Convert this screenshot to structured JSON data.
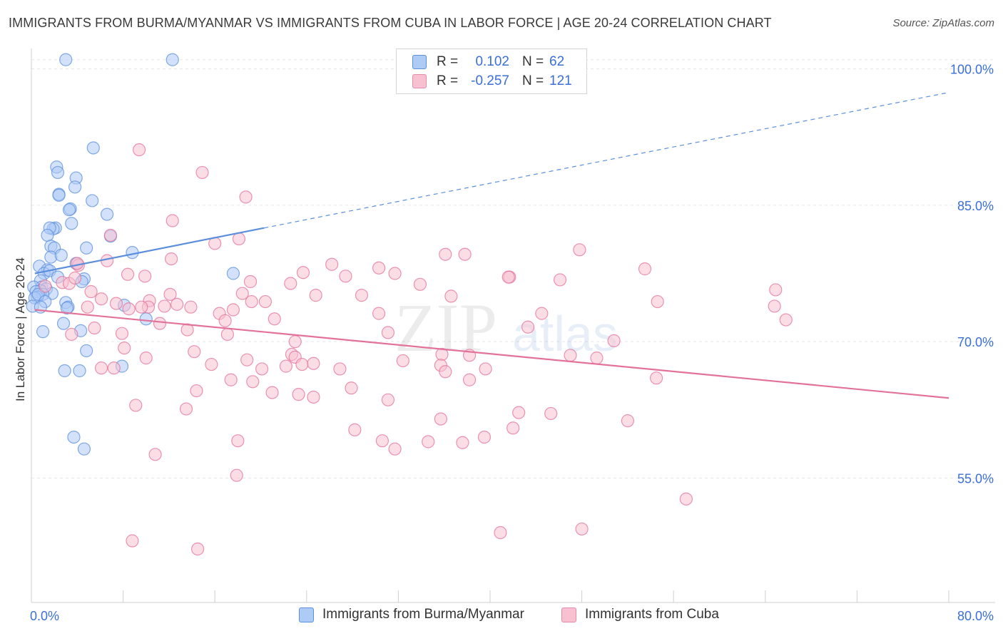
{
  "title": "IMMIGRANTS FROM BURMA/MYANMAR VS IMMIGRANTS FROM CUBA IN LABOR FORCE | AGE 20-24 CORRELATION CHART",
  "source": "Source: ZipAtlas.com",
  "watermark": {
    "zip": "ZIP",
    "atlas": "atlas"
  },
  "legend": {
    "r_label": "R =",
    "n_label": "N =",
    "series": [
      {
        "name": "Immigrants from Burma/Myanmar",
        "r": "0.102",
        "n": "62",
        "fill": "#aecbf5",
        "stroke": "#5b8fdc"
      },
      {
        "name": "Immigrants from Cuba",
        "r": "-0.257",
        "n": "121",
        "fill": "#f7c1d2",
        "stroke": "#e58aa8"
      }
    ]
  },
  "chart_data": {
    "type": "scatter",
    "title": "IMMIGRANTS FROM BURMA/MYANMAR VS IMMIGRANTS FROM CUBA IN LABOR FORCE | AGE 20-24 CORRELATION CHART",
    "xlabel": "",
    "ylabel": "In Labor Force | Age 20-24",
    "xlim": [
      0,
      80
    ],
    "ylim": [
      40,
      102
    ],
    "x_tick_labels": [
      {
        "value": 0,
        "label": "0.0%"
      },
      {
        "value": 80,
        "label": "80.0%"
      }
    ],
    "y_tick_labels": [
      {
        "value": 100,
        "label": "100.0%"
      },
      {
        "value": 85,
        "label": "85.0%"
      },
      {
        "value": 70,
        "label": "70.0%"
      },
      {
        "value": 55,
        "label": "55.0%"
      }
    ],
    "x_minor_ticks": [
      0,
      8,
      16,
      24,
      32,
      40,
      48,
      56,
      64,
      72,
      80
    ],
    "grid": true,
    "series": [
      {
        "name": "Immigrants from Burma/Myanmar",
        "color": "#5b8fdc",
        "fill": "#aecbf5",
        "trend": {
          "x": [
            0.3,
            20.3
          ],
          "y": [
            77.5,
            82.5
          ],
          "dashed_to": [
            80,
            97.4
          ]
        },
        "points": [
          [
            3.0,
            101.0
          ],
          [
            12.3,
            101.0
          ],
          [
            5.4,
            91.3
          ],
          [
            2.2,
            89.2
          ],
          [
            2.3,
            88.6
          ],
          [
            3.9,
            88.0
          ],
          [
            3.8,
            87.0
          ],
          [
            2.4,
            86.2
          ],
          [
            2.4,
            86.1
          ],
          [
            5.3,
            85.5
          ],
          [
            3.4,
            84.6
          ],
          [
            3.3,
            84.5
          ],
          [
            6.6,
            84.0
          ],
          [
            2.1,
            82.5
          ],
          [
            3.5,
            83.0
          ],
          [
            1.9,
            82.4
          ],
          [
            1.6,
            82.5
          ],
          [
            1.4,
            81.7
          ],
          [
            6.9,
            81.6
          ],
          [
            1.7,
            80.5
          ],
          [
            2.0,
            80.3
          ],
          [
            4.8,
            80.3
          ],
          [
            8.8,
            79.8
          ],
          [
            1.7,
            79.3
          ],
          [
            2.6,
            79.5
          ],
          [
            3.9,
            78.6
          ],
          [
            0.7,
            78.3
          ],
          [
            1.4,
            77.9
          ],
          [
            1.1,
            77.5
          ],
          [
            1.6,
            77.8
          ],
          [
            17.6,
            77.5
          ],
          [
            2.3,
            77.1
          ],
          [
            4.6,
            76.9
          ],
          [
            0.8,
            76.7
          ],
          [
            4.4,
            76.6
          ],
          [
            0.9,
            76.0
          ],
          [
            0.2,
            76.0
          ],
          [
            1.3,
            75.8
          ],
          [
            0.8,
            75.6
          ],
          [
            0.4,
            75.5
          ],
          [
            1.8,
            75.3
          ],
          [
            1.0,
            75.2
          ],
          [
            0.5,
            74.9
          ],
          [
            0.3,
            74.8
          ],
          [
            0.6,
            75.2
          ],
          [
            1.2,
            74.4
          ],
          [
            3.0,
            74.3
          ],
          [
            0.1,
            73.9
          ],
          [
            0.8,
            73.8
          ],
          [
            3.2,
            73.8
          ],
          [
            8.1,
            74.0
          ],
          [
            3.1,
            73.7
          ],
          [
            10.0,
            72.5
          ],
          [
            2.8,
            72.0
          ],
          [
            4.3,
            71.2
          ],
          [
            1.0,
            71.1
          ],
          [
            4.8,
            69.0
          ],
          [
            7.9,
            67.3
          ],
          [
            2.9,
            66.8
          ],
          [
            4.2,
            66.8
          ],
          [
            3.7,
            59.5
          ],
          [
            4.6,
            58.2
          ]
        ]
      },
      {
        "name": "Immigrants from Cuba",
        "color": "#e3729a",
        "fill": "#f7c1d2",
        "trend": {
          "x": [
            0.3,
            80
          ],
          "y": [
            73.5,
            63.8
          ]
        },
        "points": [
          [
            9.4,
            91.1
          ],
          [
            14.9,
            88.6
          ],
          [
            18.7,
            85.9
          ],
          [
            12.3,
            83.3
          ],
          [
            6.9,
            81.7
          ],
          [
            18.1,
            81.3
          ],
          [
            16.0,
            80.8
          ],
          [
            47.8,
            80.1
          ],
          [
            36.1,
            79.6
          ],
          [
            37.8,
            79.6
          ],
          [
            12.2,
            79.1
          ],
          [
            6.6,
            78.9
          ],
          [
            4.1,
            78.4
          ],
          [
            26.2,
            78.5
          ],
          [
            53.5,
            78.0
          ],
          [
            4.0,
            78.6
          ],
          [
            23.7,
            77.6
          ],
          [
            31.7,
            77.5
          ],
          [
            9.9,
            77.2
          ],
          [
            27.4,
            77.2
          ],
          [
            41.7,
            77.1
          ],
          [
            46.1,
            76.8
          ],
          [
            22.6,
            76.4
          ],
          [
            33.9,
            76.3
          ],
          [
            2.7,
            76.5
          ],
          [
            64.9,
            75.7
          ],
          [
            1.2,
            76.1
          ],
          [
            3.3,
            76.4
          ],
          [
            18.4,
            75.3
          ],
          [
            5.2,
            75.5
          ],
          [
            28.8,
            75.1
          ],
          [
            24.8,
            75.1
          ],
          [
            12.1,
            75.2
          ],
          [
            54.6,
            74.4
          ],
          [
            64.8,
            73.9
          ],
          [
            19.2,
            74.4
          ],
          [
            6.1,
            74.7
          ],
          [
            10.3,
            74.5
          ],
          [
            12.7,
            74.1
          ],
          [
            7.4,
            74.2
          ],
          [
            13.9,
            73.8
          ],
          [
            8.5,
            73.6
          ],
          [
            11.6,
            73.9
          ],
          [
            10.2,
            73.8
          ],
          [
            4.9,
            73.8
          ],
          [
            16.4,
            73.1
          ],
          [
            30.3,
            73.1
          ],
          [
            44.5,
            73.1
          ],
          [
            65.8,
            72.4
          ],
          [
            21.2,
            72.5
          ],
          [
            16.9,
            72.3
          ],
          [
            11.2,
            72.0
          ],
          [
            43.3,
            71.6
          ],
          [
            5.5,
            71.5
          ],
          [
            13.6,
            71.3
          ],
          [
            31.1,
            71.0
          ],
          [
            3.5,
            70.8
          ],
          [
            7.9,
            70.9
          ],
          [
            17.1,
            70.8
          ],
          [
            50.8,
            70.1
          ],
          [
            23.0,
            70.0
          ],
          [
            8.1,
            69.3
          ],
          [
            14.2,
            68.9
          ],
          [
            22.7,
            68.6
          ],
          [
            35.8,
            68.6
          ],
          [
            38.2,
            68.5
          ],
          [
            47.0,
            68.5
          ],
          [
            49.3,
            68.2
          ],
          [
            10.0,
            68.2
          ],
          [
            18.8,
            68.0
          ],
          [
            23.0,
            68.3
          ],
          [
            32.4,
            67.9
          ],
          [
            23.6,
            67.5
          ],
          [
            15.7,
            67.5
          ],
          [
            35.7,
            67.4
          ],
          [
            20.1,
            67.0
          ],
          [
            22.2,
            67.3
          ],
          [
            7.2,
            67.1
          ],
          [
            6.1,
            67.1
          ],
          [
            26.9,
            67.0
          ],
          [
            24.6,
            67.6
          ],
          [
            39.6,
            67.0
          ],
          [
            36.1,
            66.7
          ],
          [
            54.5,
            66.0
          ],
          [
            38.2,
            65.8
          ],
          [
            17.4,
            65.8
          ],
          [
            19.3,
            65.6
          ],
          [
            27.9,
            64.9
          ],
          [
            14.4,
            64.6
          ],
          [
            21.0,
            64.4
          ],
          [
            23.3,
            64.2
          ],
          [
            24.6,
            63.9
          ],
          [
            31.1,
            63.6
          ],
          [
            9.1,
            63.0
          ],
          [
            13.5,
            62.6
          ],
          [
            42.5,
            62.2
          ],
          [
            45.3,
            62.1
          ],
          [
            52.0,
            61.3
          ],
          [
            35.7,
            61.5
          ],
          [
            42.0,
            60.5
          ],
          [
            28.2,
            60.3
          ],
          [
            39.5,
            59.5
          ],
          [
            18.0,
            59.1
          ],
          [
            30.6,
            59.1
          ],
          [
            34.6,
            59.0
          ],
          [
            37.6,
            58.9
          ],
          [
            31.7,
            58.2
          ],
          [
            10.8,
            57.6
          ],
          [
            17.9,
            55.3
          ],
          [
            57.1,
            52.7
          ],
          [
            48.0,
            49.4
          ],
          [
            40.9,
            49.0
          ],
          [
            8.8,
            48.1
          ],
          [
            14.5,
            47.2
          ],
          [
            19.1,
            76.6
          ],
          [
            3.8,
            77.0
          ],
          [
            8.4,
            77.4
          ],
          [
            41.6,
            77.1
          ],
          [
            30.3,
            78.1
          ],
          [
            20.4,
            74.4
          ],
          [
            9.6,
            73.8
          ],
          [
            17.6,
            73.5
          ],
          [
            36.6,
            75.0
          ]
        ]
      }
    ]
  }
}
